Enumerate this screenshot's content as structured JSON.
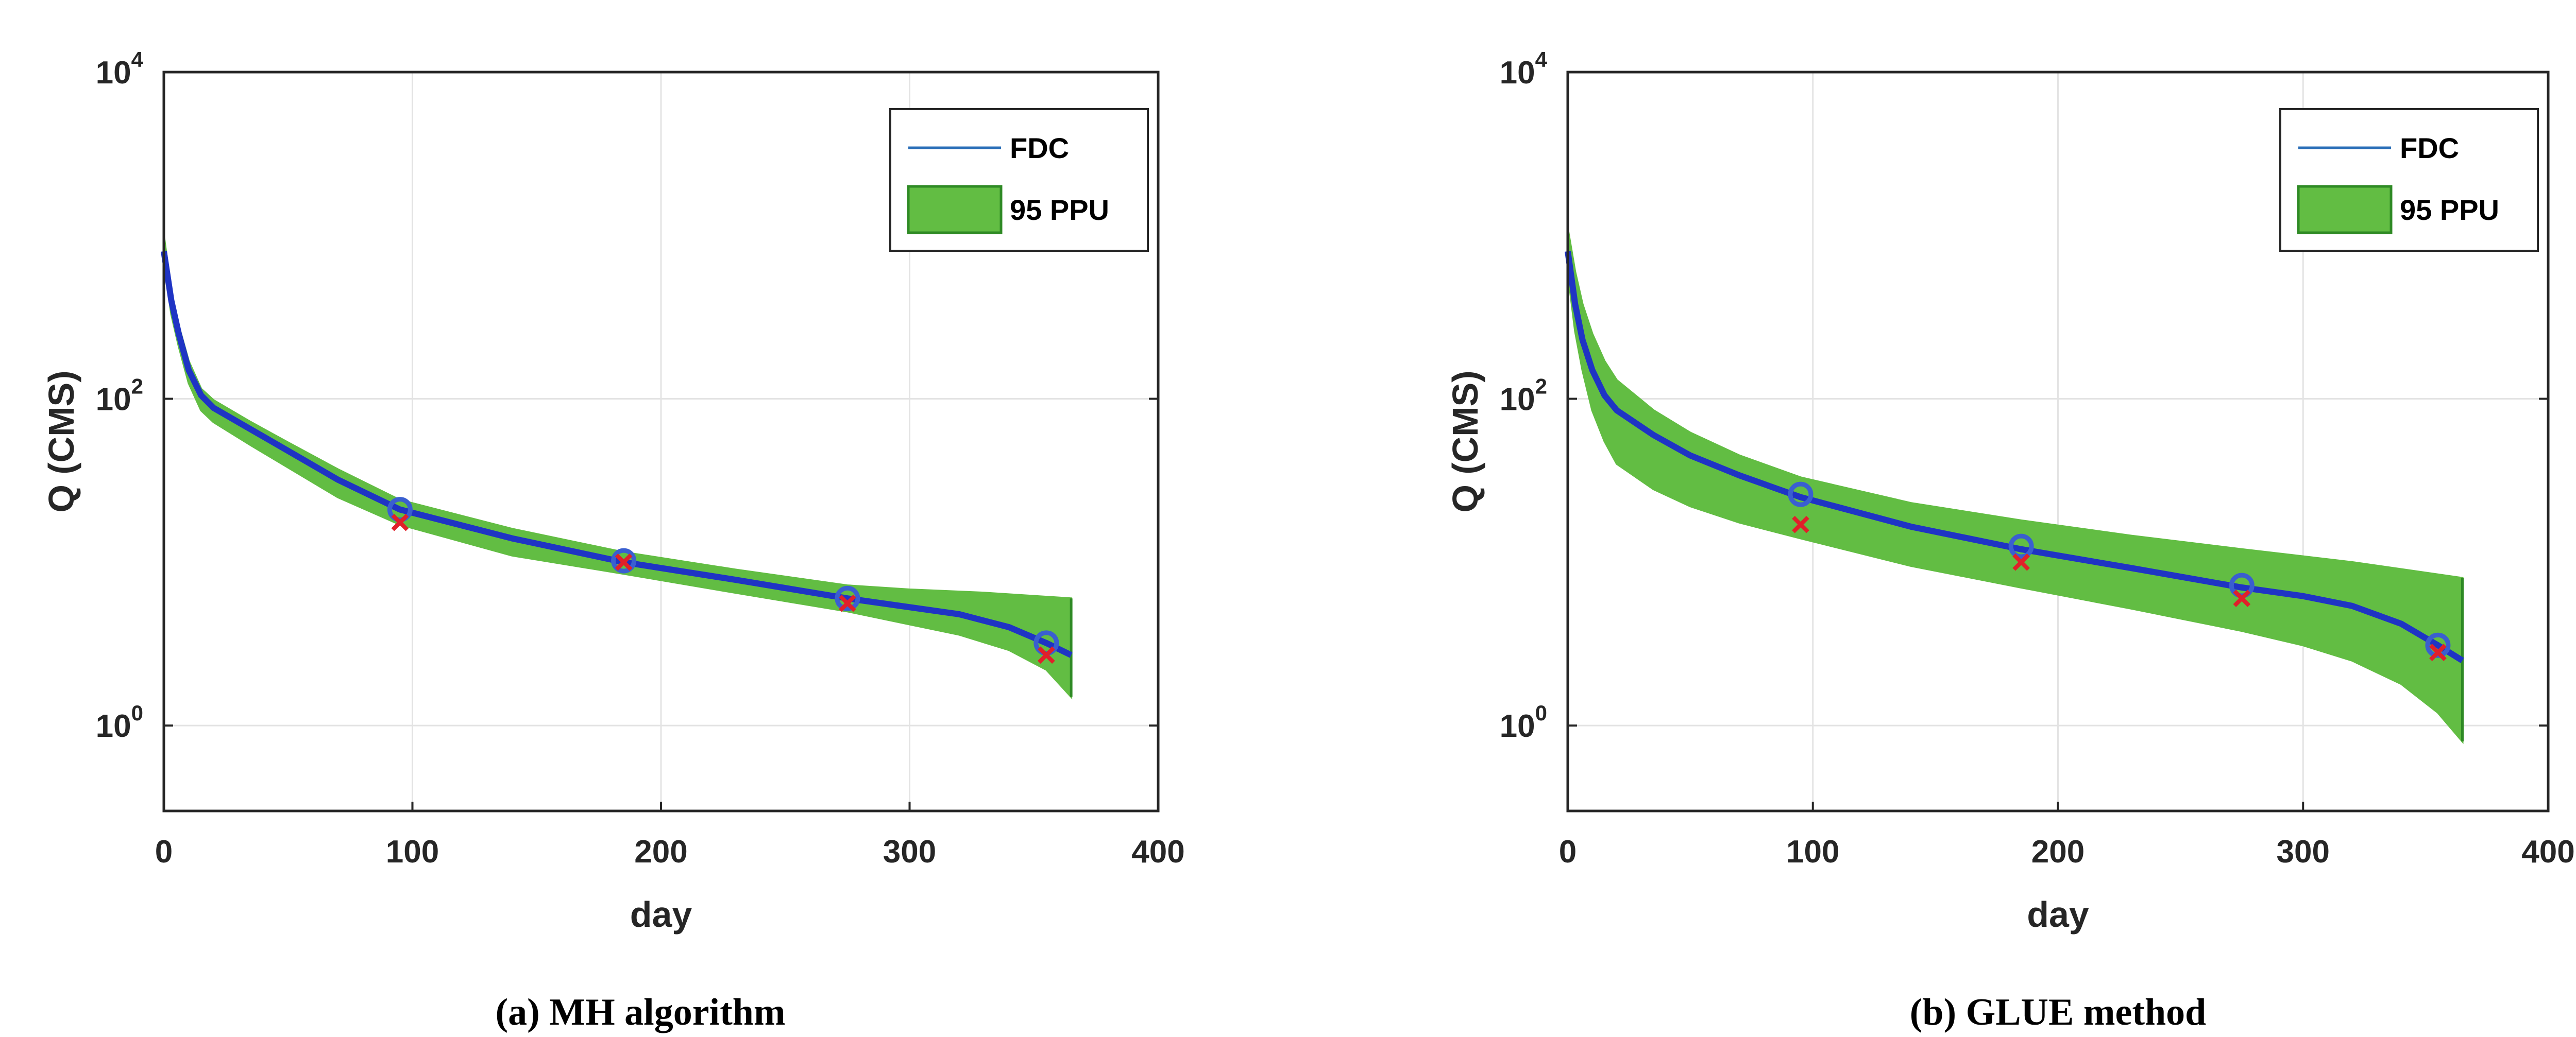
{
  "colors": {
    "band": "#62bd43",
    "band_edge": "#2f8a25",
    "fdc": "#1f34c4",
    "legend_line": "#2b6fb8",
    "obs_x": "#e0202a",
    "obs_o": "#3a5fd0"
  },
  "chart_data": [
    {
      "type": "area",
      "caption": "(a)  MH  algorithm",
      "xlabel": "day",
      "ylabel": "Q (CMS)",
      "xlim": [
        0,
        400
      ],
      "ylim": [
        0.3,
        10000
      ],
      "yscale": "log",
      "grid": true,
      "legend_position": "top-right",
      "xticks": [
        "0",
        "100",
        "200",
        "300",
        "400"
      ],
      "yticks": [
        {
          "base": "10",
          "exp": "0",
          "value": 1
        },
        {
          "base": "10",
          "exp": "2",
          "value": 100
        },
        {
          "base": "10",
          "exp": "4",
          "value": 10000
        }
      ],
      "legend": [
        "FDC",
        "95 PPU"
      ],
      "fdc": {
        "x": [
          0,
          3,
          6,
          10,
          15,
          20,
          35,
          50,
          70,
          95,
          140,
          185,
          230,
          275,
          320,
          340,
          355,
          365
        ],
        "y": [
          800,
          400,
          250,
          150,
          105,
          88,
          65,
          48,
          32,
          21,
          14,
          10,
          7.8,
          6,
          4.8,
          4,
          3.2,
          2.7
        ]
      },
      "upper": {
        "x": [
          0,
          3,
          6,
          10,
          15,
          20,
          35,
          50,
          70,
          95,
          140,
          185,
          230,
          275,
          300,
          330,
          365
        ],
        "y": [
          1000,
          450,
          280,
          170,
          115,
          98,
          72,
          54,
          37,
          24,
          16,
          11.5,
          9,
          7.2,
          6.8,
          6.5,
          6
        ]
      },
      "lower": {
        "x": [
          0,
          3,
          6,
          10,
          15,
          20,
          35,
          50,
          70,
          95,
          140,
          185,
          230,
          275,
          320,
          340,
          355,
          365
        ],
        "y": [
          700,
          330,
          210,
          125,
          85,
          72,
          52,
          38,
          25,
          17,
          11,
          8.5,
          6.5,
          5,
          3.6,
          2.9,
          2.2,
          1.5
        ]
      },
      "observed_x": {
        "x": [
          95,
          185,
          275,
          355
        ],
        "y": [
          17.5,
          10,
          5.6,
          2.7
        ]
      },
      "observed_o": {
        "x": [
          95,
          185,
          275,
          355
        ],
        "y": [
          21,
          10.2,
          6,
          3.2
        ]
      }
    },
    {
      "type": "area",
      "caption": "(b)  GLUE  method",
      "xlabel": "day",
      "ylabel": "Q (CMS)",
      "xlim": [
        0,
        400
      ],
      "ylim": [
        0.3,
        10000
      ],
      "yscale": "log",
      "grid": true,
      "legend_position": "top-right",
      "xticks": [
        "0",
        "100",
        "200",
        "300",
        "400"
      ],
      "yticks": [
        {
          "base": "10",
          "exp": "0",
          "value": 1
        },
        {
          "base": "10",
          "exp": "2",
          "value": 100
        },
        {
          "base": "10",
          "exp": "4",
          "value": 10000
        }
      ],
      "legend": [
        "FDC",
        "95 PPU"
      ],
      "fdc": {
        "x": [
          0,
          3,
          6,
          10,
          15,
          20,
          35,
          50,
          70,
          95,
          140,
          185,
          230,
          275,
          300,
          320,
          340,
          355,
          365
        ],
        "y": [
          800,
          380,
          230,
          150,
          105,
          85,
          60,
          45,
          34,
          25,
          16.5,
          12,
          9.2,
          7,
          6.2,
          5.4,
          4.2,
          3.1,
          2.5
        ]
      },
      "upper": {
        "x": [
          0,
          3,
          6,
          10,
          15,
          20,
          35,
          50,
          70,
          95,
          140,
          185,
          230,
          275,
          320,
          365
        ],
        "y": [
          1100,
          600,
          380,
          250,
          170,
          130,
          85,
          62,
          45,
          33,
          23,
          18,
          14.5,
          12,
          10,
          8
        ]
      },
      "lower": {
        "x": [
          0,
          3,
          6,
          10,
          15,
          20,
          35,
          50,
          70,
          95,
          140,
          185,
          230,
          275,
          300,
          320,
          340,
          355,
          365
        ],
        "y": [
          600,
          260,
          150,
          85,
          55,
          40,
          28,
          22,
          17.5,
          14,
          9.5,
          7,
          5.2,
          3.8,
          3.1,
          2.5,
          1.8,
          1.2,
          0.8
        ]
      },
      "observed_x": {
        "x": [
          95,
          185,
          275,
          355
        ],
        "y": [
          17,
          10,
          6,
          2.8
        ]
      },
      "observed_o": {
        "x": [
          95,
          185,
          275,
          355
        ],
        "y": [
          26,
          12.5,
          7.2,
          3.1
        ]
      }
    }
  ]
}
